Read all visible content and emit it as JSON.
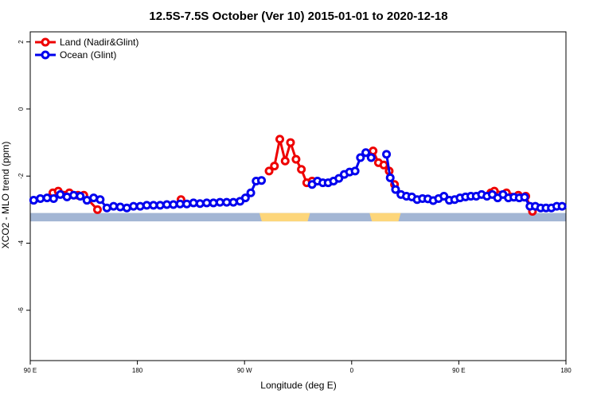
{
  "chart_data": {
    "type": "line",
    "title": "12.5S-7.5S October (Ver 10)   2015-01-01 to 2020-12-18",
    "xlabel": "Longitude (deg E)",
    "ylabel": "XCO2 - MLO trend (ppm)",
    "xlim": [
      90,
      450
    ],
    "ylim": [
      -7.5,
      2.3
    ],
    "x_ticks": [
      {
        "value": 90,
        "label": "90 E"
      },
      {
        "value": 162,
        "label": "180"
      },
      {
        "value": 234,
        "label": "90 W"
      },
      {
        "value": 306,
        "label": "0"
      },
      {
        "value": 378,
        "label": "90 E"
      },
      {
        "value": 450,
        "label": "180"
      }
    ],
    "y_ticks": [
      {
        "value": 2,
        "label": "2"
      },
      {
        "value": 0,
        "label": "0"
      },
      {
        "value": -2,
        "label": "-2"
      },
      {
        "value": -4,
        "label": "-4"
      },
      {
        "value": -6,
        "label": "-6"
      }
    ],
    "legend_position": "top-left",
    "map_strip": {
      "y_range": [
        -3.35,
        -3.1
      ],
      "ocean_color": "#a3b6d4",
      "land_color": "#fdd67a",
      "land_spans": [
        [
          244,
          278
        ],
        [
          318,
          339
        ]
      ]
    },
    "series": [
      {
        "name": "Land (Nadir&Glint)",
        "color": "#ee0000",
        "segments": [
          {
            "x": [
              105.2,
              108.8,
              116.3,
              122.0,
              126.0,
              135.2
            ],
            "y": [
              -2.5,
              -2.45,
              -2.5,
              -2.57,
              -2.57,
              -3.0
            ]
          },
          {
            "x": [
              191.3
            ],
            "y": [
              -2.7
            ]
          },
          {
            "x": [
              250.5,
              254.1,
              257.7,
              261.3,
              264.9,
              268.6,
              272.2,
              275.8,
              279.4
            ],
            "y": [
              -1.85,
              -1.7,
              -0.9,
              -1.55,
              -1.0,
              -1.5,
              -1.8,
              -2.2,
              -2.15
            ]
          },
          {
            "x": [
              320.4,
              324.0,
              327.6,
              331.2,
              334.8
            ],
            "y": [
              -1.25,
              -1.6,
              -1.67,
              -1.85,
              -2.25
            ]
          },
          {
            "x": [
              399.5,
              401.9,
              410.0,
              418.0,
              423.0,
              427.5
            ],
            "y": [
              -2.5,
              -2.45,
              -2.5,
              -2.57,
              -2.6,
              -3.05
            ]
          }
        ]
      },
      {
        "name": "Ocean (Glint)",
        "color": "#0000ee",
        "segments": [
          {
            "x": [
              92.3,
              96.8,
              101.3,
              105.7,
              110.2,
              114.7,
              119.2,
              123.6,
              128.1,
              132.6,
              137.0,
              141.5,
              146.0,
              150.5,
              154.9,
              159.4,
              163.9,
              168.3,
              172.8,
              177.3,
              181.8,
              186.2,
              190.7,
              195.2,
              199.7,
              204.1,
              208.6,
              213.1,
              217.5,
              222.0,
              226.5,
              231.0,
              234.6,
              238.2,
              241.8,
              245.4
            ],
            "y": [
              -2.72,
              -2.67,
              -2.65,
              -2.67,
              -2.55,
              -2.62,
              -2.57,
              -2.6,
              -2.72,
              -2.65,
              -2.7,
              -2.95,
              -2.9,
              -2.92,
              -2.95,
              -2.9,
              -2.9,
              -2.87,
              -2.87,
              -2.87,
              -2.85,
              -2.85,
              -2.83,
              -2.83,
              -2.8,
              -2.82,
              -2.8,
              -2.8,
              -2.78,
              -2.78,
              -2.78,
              -2.75,
              -2.65,
              -2.5,
              -2.15,
              -2.13
            ]
          },
          {
            "x": [
              279.4,
              283.0,
              286.6,
              290.2,
              293.8,
              297.4,
              301.0,
              304.6,
              308.3,
              311.9,
              315.5,
              319.1
            ],
            "y": [
              -2.25,
              -2.15,
              -2.2,
              -2.2,
              -2.15,
              -2.07,
              -1.95,
              -1.88,
              -1.85,
              -1.45,
              -1.3,
              -1.45
            ]
          },
          {
            "x": [
              329.4,
              331.9,
              335.5,
              339.1,
              342.8,
              346.4,
              350.0,
              353.6,
              357.2,
              360.8,
              364.4,
              368.0,
              371.6,
              375.2,
              378.8,
              382.5,
              386.1,
              389.7,
              393.3,
              396.9,
              400.5,
              404.1,
              407.7,
              411.3,
              415.0,
              418.6,
              422.2,
              425.8,
              429.4,
              433.0,
              436.6,
              440.2,
              443.8,
              447.4
            ],
            "y": [
              -1.35,
              -2.05,
              -2.4,
              -2.55,
              -2.6,
              -2.62,
              -2.7,
              -2.67,
              -2.68,
              -2.73,
              -2.67,
              -2.6,
              -2.72,
              -2.7,
              -2.65,
              -2.62,
              -2.6,
              -2.6,
              -2.55,
              -2.6,
              -2.55,
              -2.65,
              -2.55,
              -2.65,
              -2.63,
              -2.65,
              -2.63,
              -2.9,
              -2.9,
              -2.95,
              -2.95,
              -2.95,
              -2.9,
              -2.9
            ]
          }
        ]
      }
    ]
  }
}
